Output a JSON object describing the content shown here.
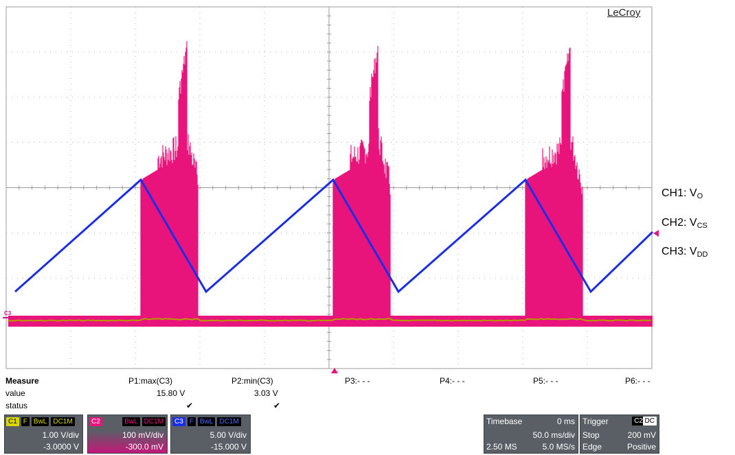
{
  "brand": "LeCroy",
  "channel_labels": {
    "ch1": "CH1: V",
    "ch1_sub": "O",
    "ch2": "CH2: V",
    "ch2_sub": "CS",
    "ch3": "CH3: V",
    "ch3_sub": "DD"
  },
  "c3_marker": "C3",
  "measure": {
    "title": "Measure",
    "row_value": "value",
    "row_status": "status",
    "params": [
      {
        "label": "P1:max(C3)",
        "value": "15.80 V",
        "status": "✔"
      },
      {
        "label": "P2:min(C3)",
        "value": "3.03 V",
        "status": "✔"
      },
      {
        "label": "P3:- - -",
        "value": "",
        "status": ""
      },
      {
        "label": "P4:- - -",
        "value": "",
        "status": ""
      },
      {
        "label": "P5:- - -",
        "value": "",
        "status": ""
      },
      {
        "label": "P6:- - -",
        "value": "",
        "status": ""
      }
    ]
  },
  "channels": [
    {
      "id": "C1",
      "tags": [
        "F",
        "BwL",
        "DC1M"
      ],
      "scale": "1.00 V/div",
      "offset": "-3.0000 V",
      "color": "#d8d800"
    },
    {
      "id": "C2",
      "tags": [
        "BwL",
        "DC1M"
      ],
      "scale": "100 mV/div",
      "offset": "-300.0 mV",
      "color": "#e8157d"
    },
    {
      "id": "C3",
      "tags": [
        "F",
        "BwL",
        "DC1M"
      ],
      "scale": "5.00 V/div",
      "offset": "-15.000 V",
      "color": "#1a2ee8"
    }
  ],
  "timebase": {
    "label": "Timebase",
    "delay": "0 ms",
    "per_div": "50.0 ms/div",
    "samples": "2.50 MS",
    "rate": "5.0 MS/s"
  },
  "trigger": {
    "label": "Trigger",
    "source": "C2",
    "coupling": "DC",
    "mode": "Stop",
    "level": "200 mV",
    "type": "Edge",
    "slope": "Positive"
  },
  "colors": {
    "ch_blue": "#1a2ee8",
    "ch_pink": "#e8157d",
    "ch_olive": "#b59a00",
    "grid": "#9a9a9a"
  }
}
